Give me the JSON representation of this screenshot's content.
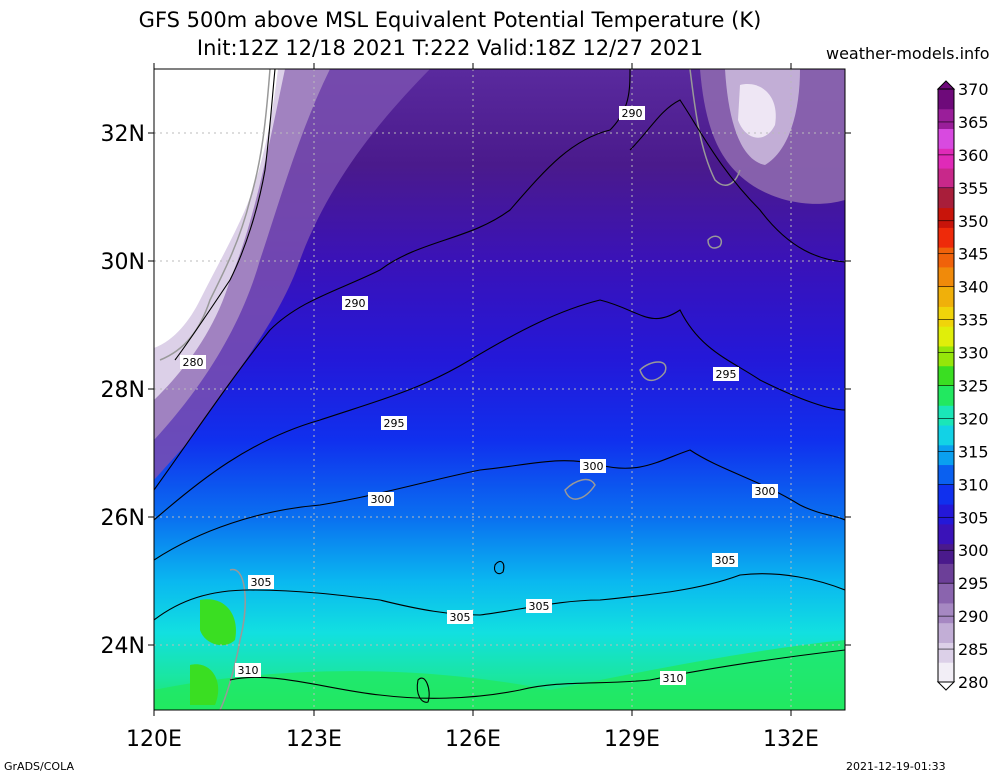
{
  "title": {
    "line1": "GFS 500m above MSL Equivalent Potential Temperature (K)",
    "line2": "Init:12Z 12/18 2021 T:222 Valid:18Z 12/27 2021"
  },
  "credit": "weather-models.info",
  "footer": {
    "left": "GrADS/COLA",
    "right": "2021-12-19-01:33"
  },
  "map": {
    "lon_range": [
      120,
      133
    ],
    "lat_range": [
      23,
      33
    ],
    "lat_labels": [
      "32N",
      "30N",
      "28N",
      "26N",
      "24N"
    ],
    "lon_labels": [
      "120E",
      "123E",
      "126E",
      "129E",
      "132E"
    ]
  },
  "contours": {
    "labels": [
      "280",
      "290",
      "290",
      "295",
      "295",
      "300",
      "300",
      "300",
      "305",
      "305",
      "305",
      "305",
      "310",
      "310"
    ]
  },
  "colorbar": {
    "levels": [
      "280",
      "285",
      "290",
      "295",
      "300",
      "305",
      "310",
      "315",
      "320",
      "325",
      "330",
      "335",
      "340",
      "345",
      "350",
      "355",
      "360",
      "365",
      "370"
    ],
    "colors": [
      "#f2eef6",
      "#dcd0e8",
      "#c2aed6",
      "#a688c2",
      "#8a64ae",
      "#6c3f98",
      "#4a1a8c",
      "#3a12b8",
      "#2418d8",
      "#1030ee",
      "#0a60f0",
      "#0aa0f0",
      "#12d2e6",
      "#1ae6b8",
      "#22e860",
      "#3ade22",
      "#96e60a",
      "#e0ee0a",
      "#f0d40a",
      "#f0b00a",
      "#f08a0a",
      "#f0620a",
      "#ee2a0a",
      "#c8140a",
      "#a81e3a",
      "#c8288a",
      "#e02ab8",
      "#d84ae0",
      "#9a1e9a",
      "#6e0a7a"
    ]
  }
}
